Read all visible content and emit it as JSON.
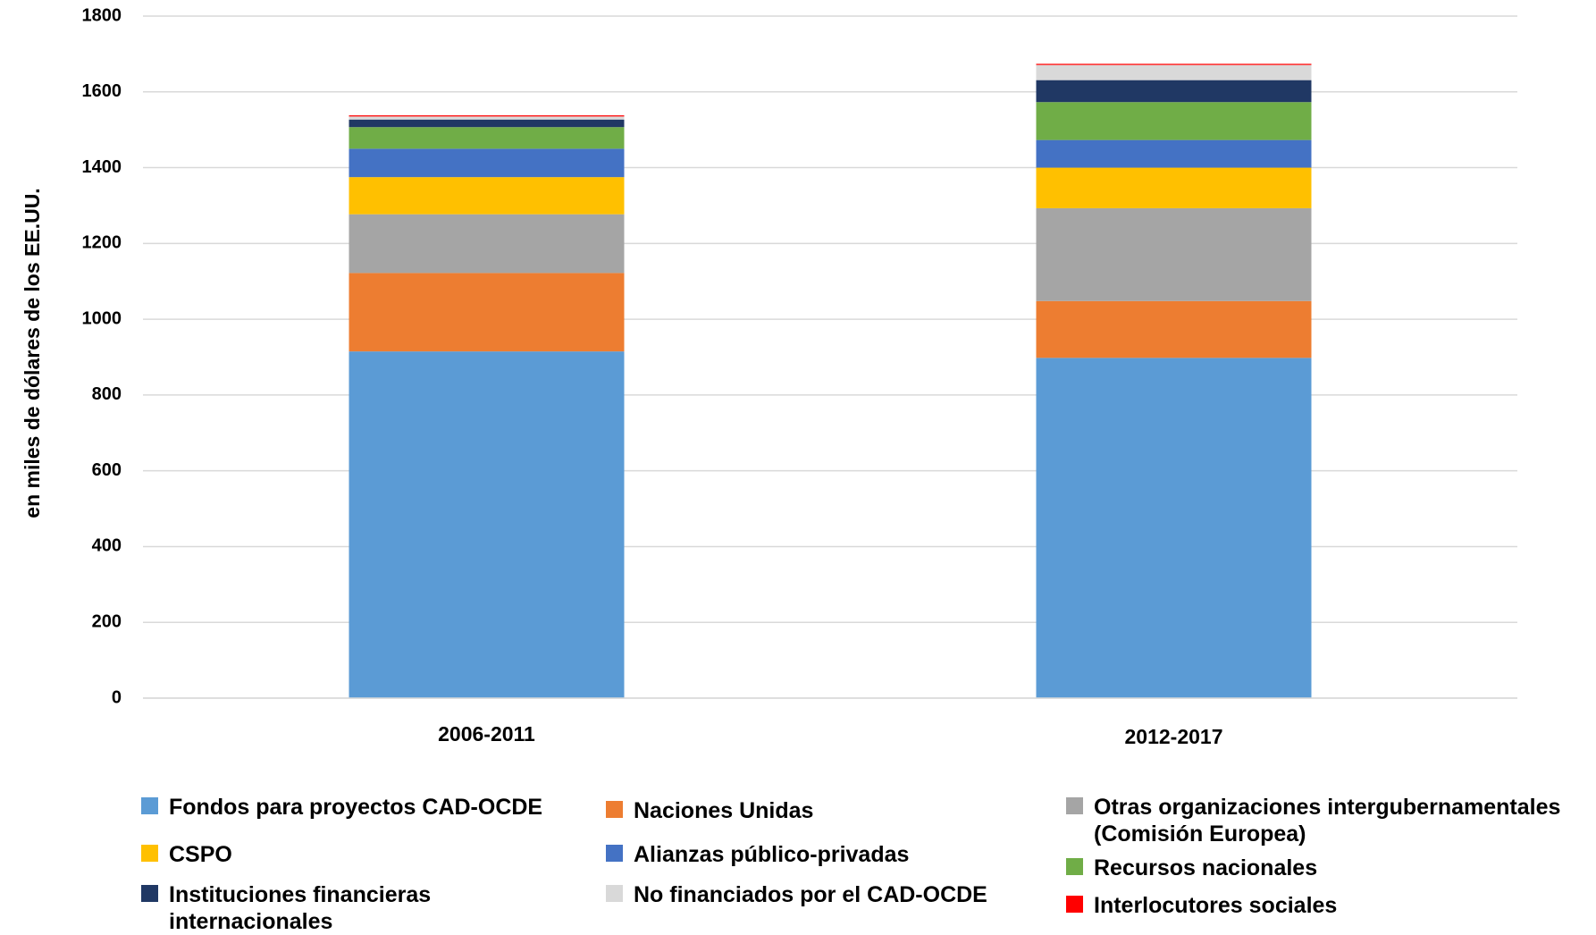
{
  "chart_data": {
    "type": "bar",
    "stacked": true,
    "title": "",
    "xlabel": "",
    "ylabel": "en miles de dólares de los EE.UU.",
    "ylim": [
      0,
      1800
    ],
    "yticks": [
      0,
      200,
      400,
      600,
      800,
      1000,
      1200,
      1400,
      1600,
      1800
    ],
    "grid": true,
    "legend_position": "bottom",
    "categories": [
      "2006-2011",
      "2012-2017"
    ],
    "series": [
      {
        "name": "Fondos para proyectos CAD-OCDE",
        "color": "#5B9BD5",
        "values": [
          915,
          898
        ]
      },
      {
        "name": "Naciones Unidas",
        "color": "#ED7D31",
        "values": [
          207,
          150
        ]
      },
      {
        "name": "Otras organizaciones intergubernamentales\n(Comisión Europea)",
        "color": "#A5A5A5",
        "values": [
          155,
          245
        ]
      },
      {
        "name": "CSPO",
        "color": "#FFC000",
        "values": [
          98,
          107
        ]
      },
      {
        "name": "Alianzas público-privadas",
        "color": "#4472C4",
        "values": [
          75,
          73
        ]
      },
      {
        "name": "Recursos nacionales",
        "color": "#70AD47",
        "values": [
          57,
          100
        ]
      },
      {
        "name": "Instituciones financieras\ninternacionales",
        "color": "#203864",
        "values": [
          20,
          58
        ]
      },
      {
        "name": "No financiados por el CAD-OCDE",
        "color": "#D9D9D9",
        "values": [
          8,
          40
        ]
      },
      {
        "name": "Interlocutores sociales",
        "color": "#FF0000",
        "values": [
          3,
          3
        ]
      }
    ]
  }
}
